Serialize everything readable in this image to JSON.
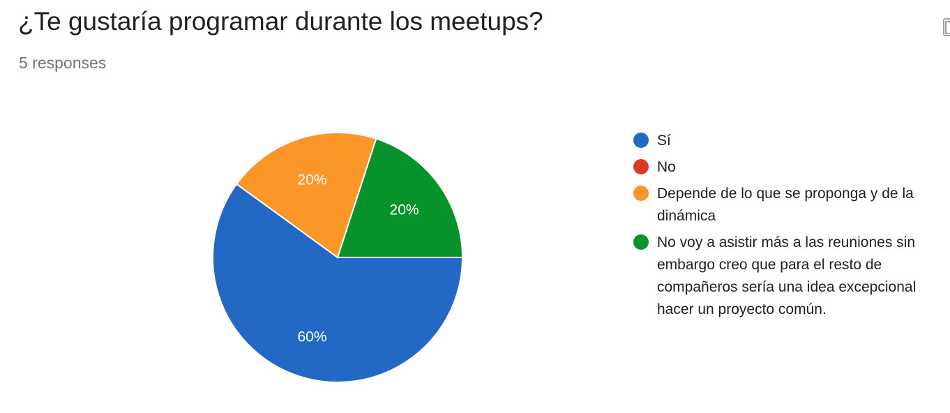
{
  "header": {
    "title": "¿Te gustaría programar durante los meetups?",
    "responses": "5 responses"
  },
  "icons": {
    "copy": "copy-chart-icon"
  },
  "chart_data": {
    "type": "pie",
    "title": "¿Te gustaría programar durante los meetups?",
    "categories": [
      "Sí",
      "No",
      "Depende de lo que se proponga y de la dinámica",
      "No voy a asistir más a las reuniones sin embargo creo que para el resto de compañeros sería una idea excepcional hacer un proyecto común."
    ],
    "values": [
      60,
      0,
      20,
      20
    ],
    "value_labels": [
      "60%",
      "",
      "20%",
      "20%"
    ],
    "colors": [
      "#2368c4",
      "#db3a26",
      "#fb9628",
      "#08922c"
    ],
    "legend_position": "right"
  }
}
